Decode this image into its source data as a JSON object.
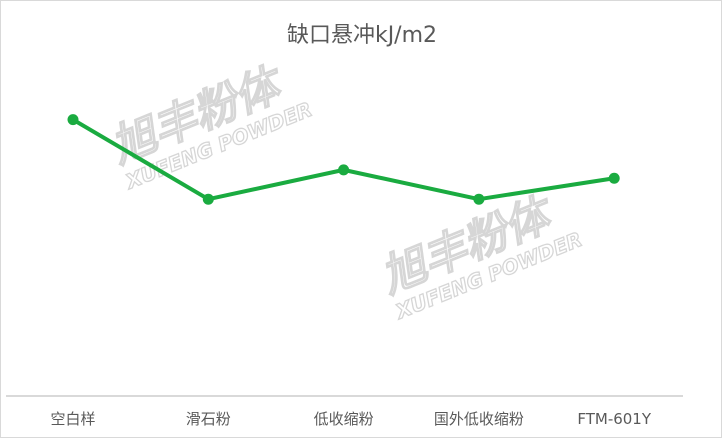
{
  "chart_data": {
    "type": "line",
    "title": "缺口悬冲kJ/m2",
    "categories": [
      "空白样",
      "滑石粉",
      "低收缩粉",
      "国外低收缩粉",
      "FTM-601Y"
    ],
    "series": [
      {
        "values": [
          6.6,
          4.7,
          5.4,
          4.7,
          5.2
        ],
        "color": "#1aab40"
      }
    ],
    "ylim": [
      0,
      8
    ],
    "grid": false,
    "legend": "none",
    "watermark": {
      "cn": "旭丰粉体",
      "en": "XUFENG POWDER"
    }
  }
}
